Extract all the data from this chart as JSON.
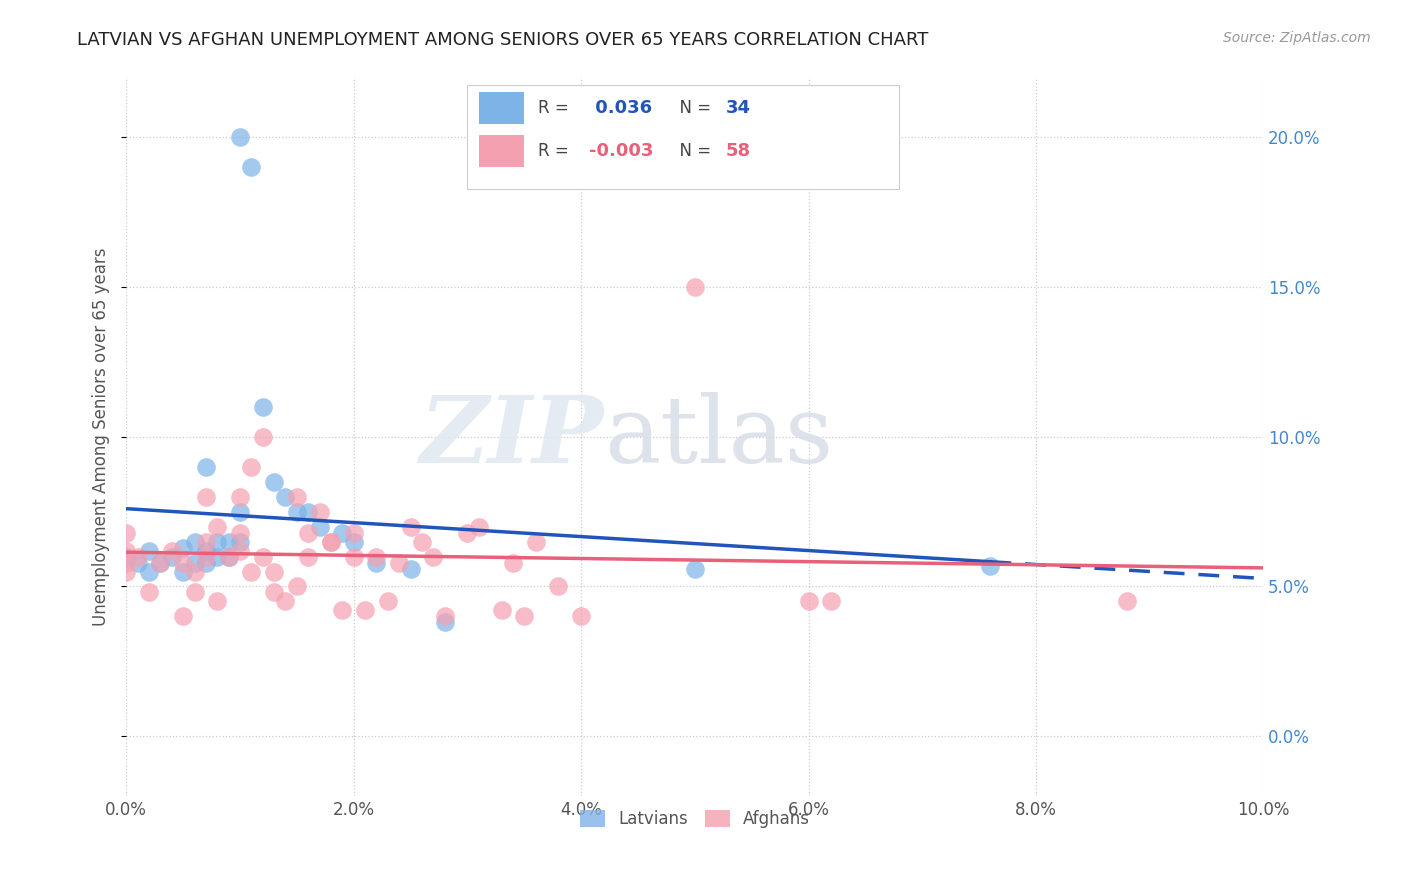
{
  "title": "LATVIAN VS AFGHAN UNEMPLOYMENT AMONG SENIORS OVER 65 YEARS CORRELATION CHART",
  "source": "Source: ZipAtlas.com",
  "ylabel_label": "Unemployment Among Seniors over 65 years",
  "xlim": [
    0.0,
    0.1
  ],
  "ylim": [
    -0.02,
    0.22
  ],
  "xticks": [
    0.0,
    0.02,
    0.04,
    0.06,
    0.08,
    0.1
  ],
  "yticks": [
    0.0,
    0.05,
    0.1,
    0.15,
    0.2
  ],
  "latvian_R": 0.036,
  "latvian_N": 34,
  "afghan_R": -0.003,
  "afghan_N": 58,
  "latvian_color": "#7EB3E8",
  "afghan_color": "#F4A0B0",
  "latvian_line_color": "#2255BB",
  "afghan_line_color": "#E8607A",
  "background_color": "#ffffff",
  "watermark_zip": "ZIP",
  "watermark_atlas": "atlas",
  "latvian_x": [
    0.0,
    0.001,
    0.002,
    0.002,
    0.003,
    0.004,
    0.005,
    0.005,
    0.006,
    0.006,
    0.007,
    0.007,
    0.007,
    0.008,
    0.008,
    0.009,
    0.009,
    0.01,
    0.01,
    0.01,
    0.011,
    0.012,
    0.013,
    0.014,
    0.015,
    0.016,
    0.017,
    0.019,
    0.02,
    0.022,
    0.025,
    0.028,
    0.05,
    0.076
  ],
  "latvian_y": [
    0.06,
    0.058,
    0.055,
    0.062,
    0.058,
    0.06,
    0.055,
    0.063,
    0.058,
    0.065,
    0.058,
    0.062,
    0.09,
    0.06,
    0.065,
    0.06,
    0.065,
    0.065,
    0.075,
    0.2,
    0.19,
    0.11,
    0.085,
    0.08,
    0.075,
    0.075,
    0.07,
    0.068,
    0.065,
    0.058,
    0.056,
    0.038,
    0.056,
    0.057
  ],
  "afghan_x": [
    0.0,
    0.0,
    0.0,
    0.0,
    0.001,
    0.002,
    0.003,
    0.004,
    0.005,
    0.005,
    0.006,
    0.006,
    0.007,
    0.007,
    0.007,
    0.008,
    0.008,
    0.009,
    0.01,
    0.01,
    0.01,
    0.011,
    0.011,
    0.012,
    0.012,
    0.013,
    0.013,
    0.014,
    0.015,
    0.015,
    0.016,
    0.016,
    0.017,
    0.018,
    0.018,
    0.019,
    0.02,
    0.02,
    0.021,
    0.022,
    0.023,
    0.024,
    0.025,
    0.026,
    0.027,
    0.028,
    0.03,
    0.031,
    0.033,
    0.034,
    0.035,
    0.036,
    0.038,
    0.04,
    0.05,
    0.06,
    0.062,
    0.088
  ],
  "afghan_y": [
    0.055,
    0.058,
    0.062,
    0.068,
    0.06,
    0.048,
    0.058,
    0.062,
    0.058,
    0.04,
    0.055,
    0.048,
    0.06,
    0.065,
    0.08,
    0.07,
    0.045,
    0.06,
    0.062,
    0.068,
    0.08,
    0.055,
    0.09,
    0.1,
    0.06,
    0.055,
    0.048,
    0.045,
    0.05,
    0.08,
    0.06,
    0.068,
    0.075,
    0.065,
    0.065,
    0.042,
    0.06,
    0.068,
    0.042,
    0.06,
    0.045,
    0.058,
    0.07,
    0.065,
    0.06,
    0.04,
    0.068,
    0.07,
    0.042,
    0.058,
    0.04,
    0.065,
    0.05,
    0.04,
    0.15,
    0.045,
    0.045,
    0.045
  ]
}
